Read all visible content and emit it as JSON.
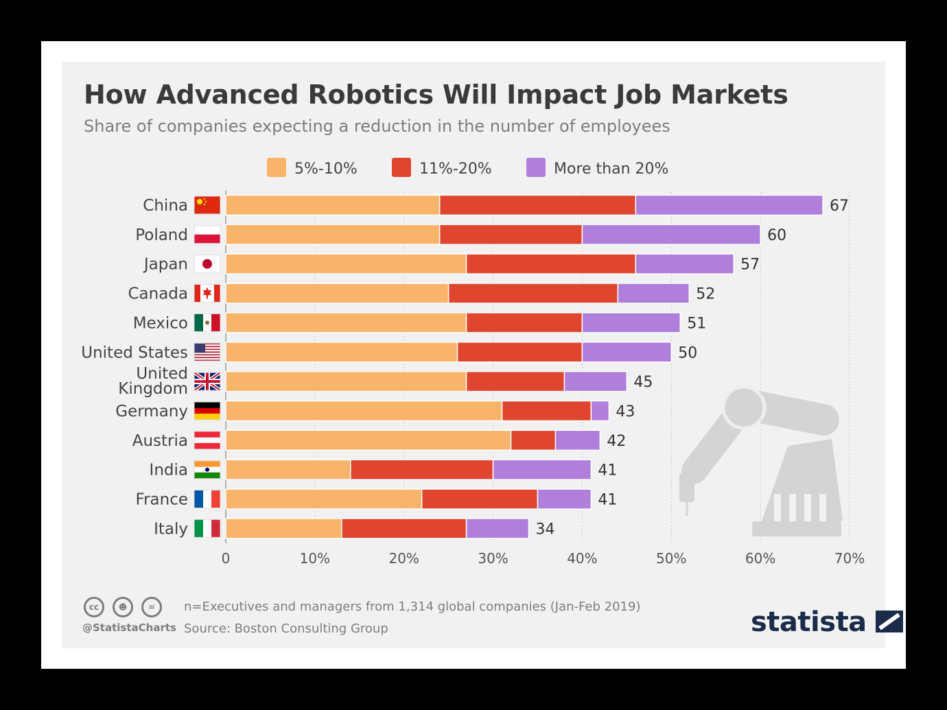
{
  "title": "How Advanced Robotics Will Impact Job Markets",
  "subtitle": "Share of companies expecting a reduction in the number of employees",
  "footnote": "n=Executives and managers from 1,314 global companies (Jan-Feb 2019)",
  "source": "Source: Boston Consulting Group",
  "handle": "@StatistaCharts",
  "brand": "statista",
  "icons": [
    "cc-icon",
    "by-icon",
    "nd-icon"
  ],
  "colors": {
    "series_5_10": "#f9b46b",
    "series_11_20": "#e0462f",
    "series_over_20": "#b07edb",
    "title": "#3a3a3a",
    "brand": "#1b2c4a"
  },
  "chart_data": {
    "type": "bar",
    "orientation": "horizontal",
    "stacked": true,
    "categories": [
      "China",
      "Poland",
      "Japan",
      "Canada",
      "Mexico",
      "United States",
      "United Kingdom",
      "Germany",
      "Austria",
      "India",
      "France",
      "Italy"
    ],
    "flags": [
      "china-flag-icon",
      "poland-flag-icon",
      "japan-flag-icon",
      "canada-flag-icon",
      "mexico-flag-icon",
      "usa-flag-icon",
      "uk-flag-icon",
      "germany-flag-icon",
      "austria-flag-icon",
      "india-flag-icon",
      "france-flag-icon",
      "italy-flag-icon"
    ],
    "series": [
      {
        "name": "5%-10%",
        "color": "#f9b46b",
        "values": [
          24,
          24,
          27,
          25,
          27,
          26,
          27,
          31,
          32,
          14,
          22,
          13
        ]
      },
      {
        "name": "11%-20%",
        "color": "#e0462f",
        "values": [
          22,
          16,
          19,
          19,
          13,
          14,
          11,
          10,
          5,
          16,
          13,
          14
        ]
      },
      {
        "name": "More than 20%",
        "color": "#b07edb",
        "values": [
          21,
          20,
          11,
          8,
          11,
          10,
          7,
          2,
          5,
          11,
          6,
          7
        ]
      }
    ],
    "totals": [
      67,
      60,
      57,
      52,
      51,
      50,
      45,
      43,
      42,
      41,
      41,
      34
    ],
    "xlim": [
      0,
      70
    ],
    "xticks": [
      "0",
      "10%",
      "20%",
      "30%",
      "40%",
      "50%",
      "60%",
      "70%"
    ],
    "grid": "vertical dotted",
    "legend_position": "top"
  }
}
